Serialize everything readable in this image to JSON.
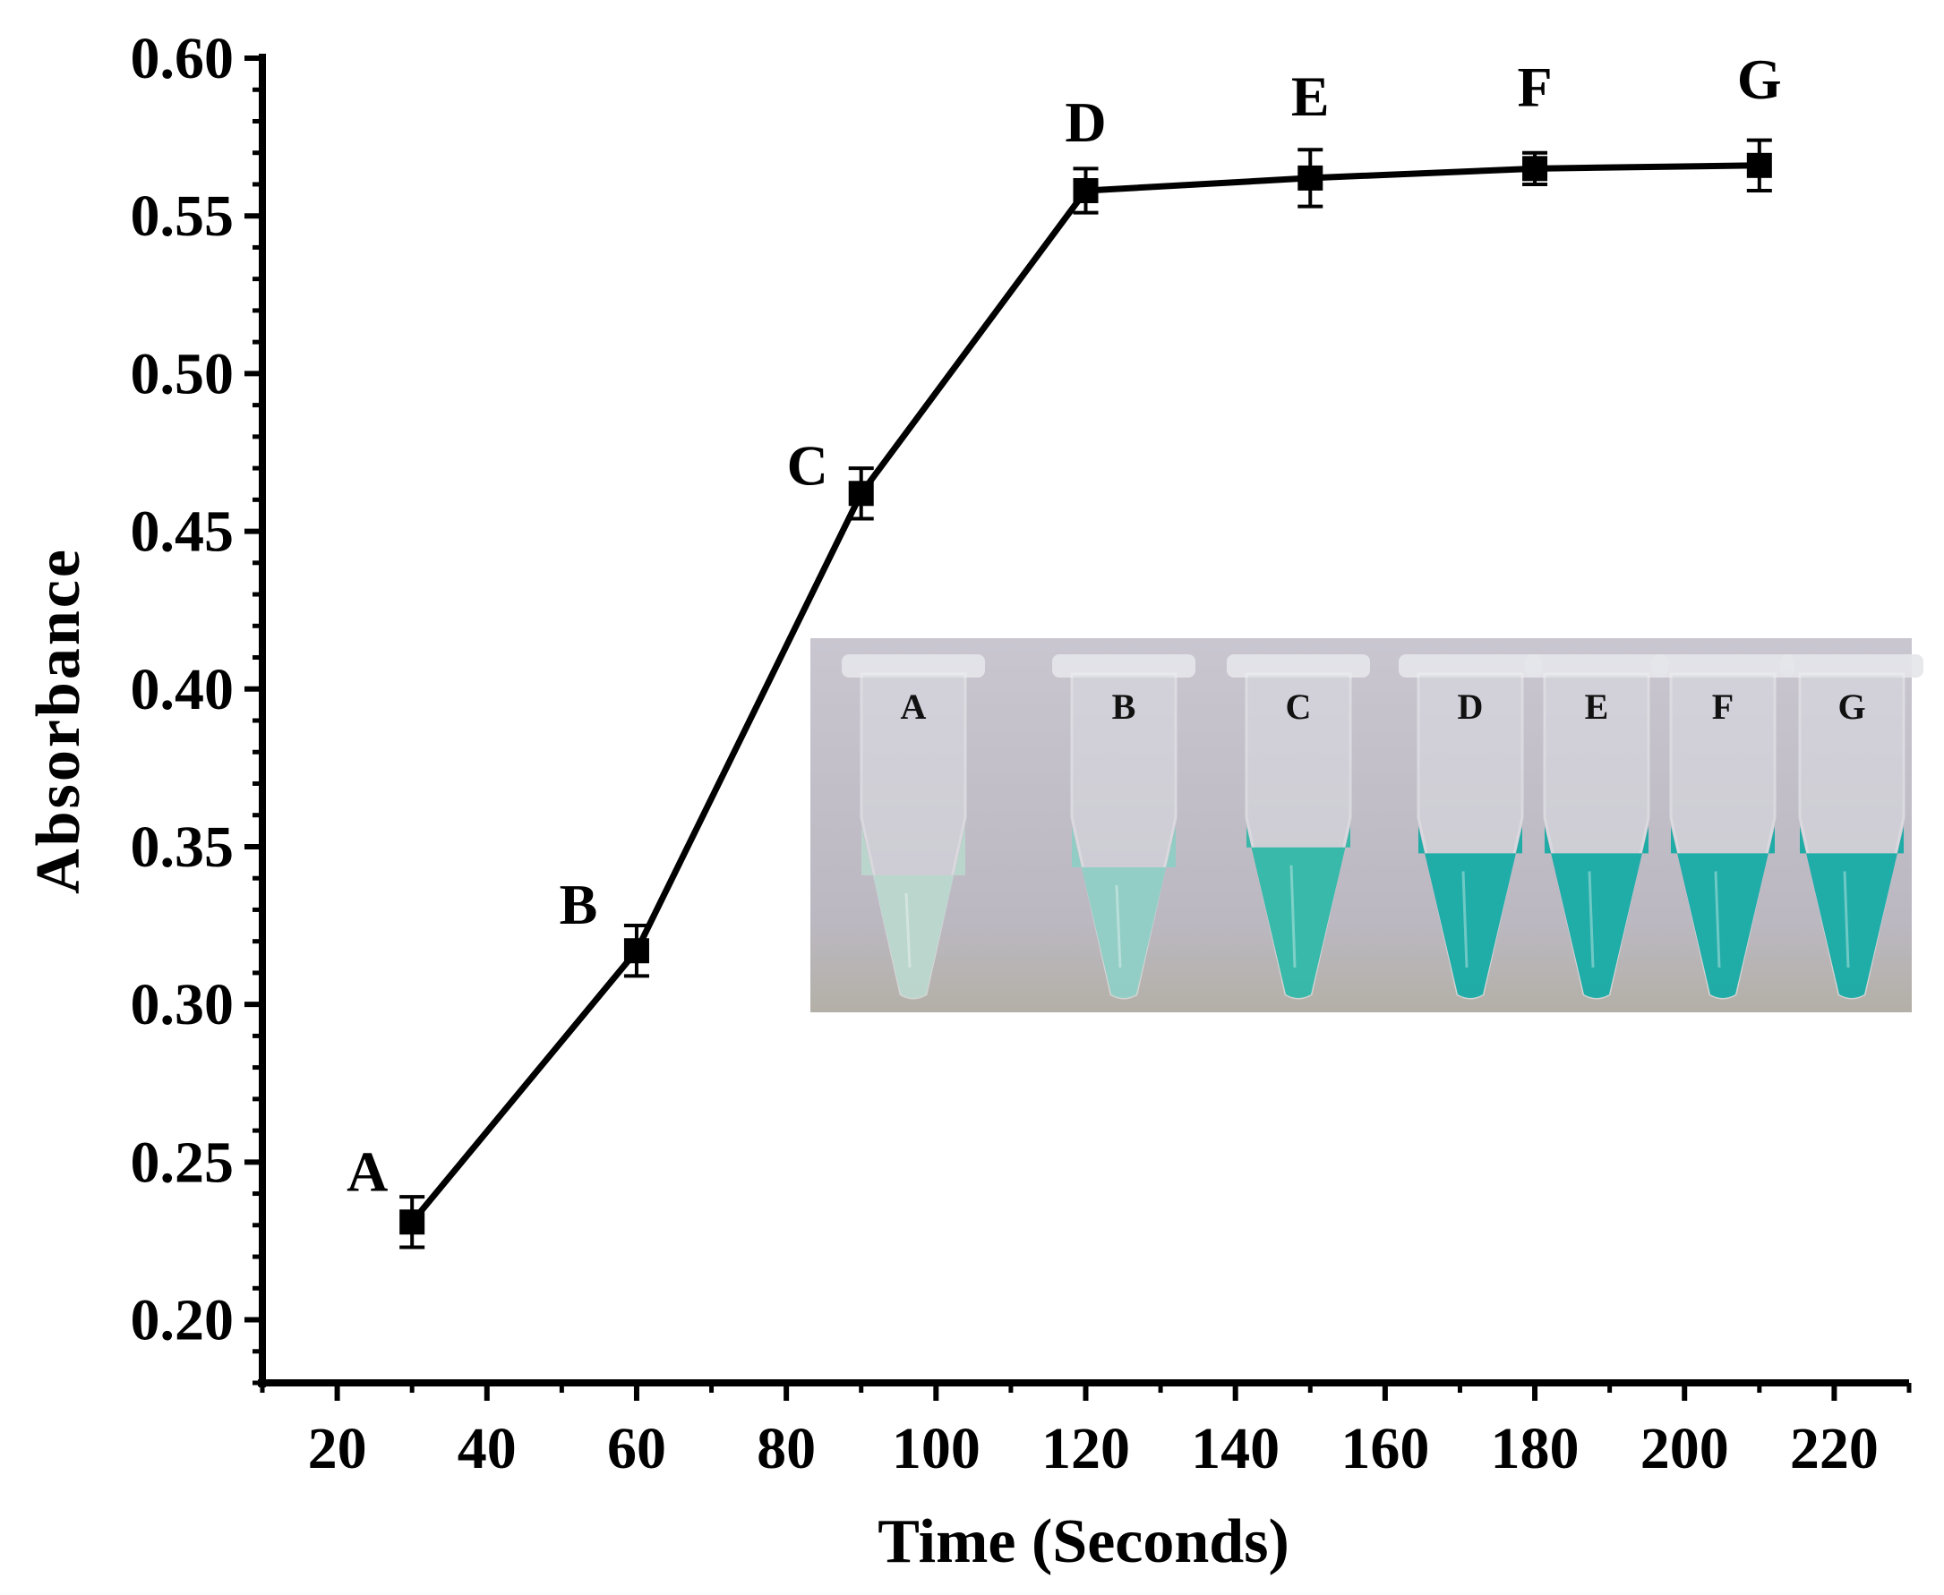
{
  "chart_data": {
    "type": "line",
    "xlabel": "Time (Seconds)",
    "ylabel": "Absorbance",
    "xlim": [
      10,
      230
    ],
    "ylim": [
      0.18,
      0.6
    ],
    "x_ticks": [
      20,
      40,
      60,
      80,
      100,
      120,
      140,
      160,
      180,
      200,
      220
    ],
    "y_ticks": [
      "0.20",
      "0.25",
      "0.30",
      "0.35",
      "0.40",
      "0.45",
      "0.50",
      "0.55",
      "0.60"
    ],
    "legend": "none",
    "grid": false,
    "series": [
      {
        "marker": "filled-square",
        "color": "#000000",
        "points": [
          {
            "label": "A",
            "x": 30,
            "y": 0.231,
            "err": 0.008
          },
          {
            "label": "B",
            "x": 60,
            "y": 0.317,
            "err": 0.008
          },
          {
            "label": "C",
            "x": 90,
            "y": 0.462,
            "err": 0.008
          },
          {
            "label": "D",
            "x": 120,
            "y": 0.558,
            "err": 0.007
          },
          {
            "label": "E",
            "x": 150,
            "y": 0.562,
            "err": 0.009
          },
          {
            "label": "F",
            "x": 180,
            "y": 0.565,
            "err": 0.005
          },
          {
            "label": "G",
            "x": 210,
            "y": 0.566,
            "err": 0.008
          }
        ]
      }
    ],
    "inset": {
      "description": "photo of tubes",
      "tubes": [
        {
          "label": "A",
          "color": "#b9d6cc",
          "level": 0.6
        },
        {
          "label": "B",
          "color": "#8ecdc4",
          "level": 0.64
        },
        {
          "label": "C",
          "color": "#2fb7a7",
          "level": 0.74
        },
        {
          "label": "D",
          "color": "#16aaa4",
          "level": 0.71
        },
        {
          "label": "E",
          "color": "#16aaa4",
          "level": 0.71
        },
        {
          "label": "F",
          "color": "#16aaa4",
          "level": 0.71
        },
        {
          "label": "G",
          "color": "#16aaa4",
          "level": 0.71
        }
      ]
    }
  }
}
